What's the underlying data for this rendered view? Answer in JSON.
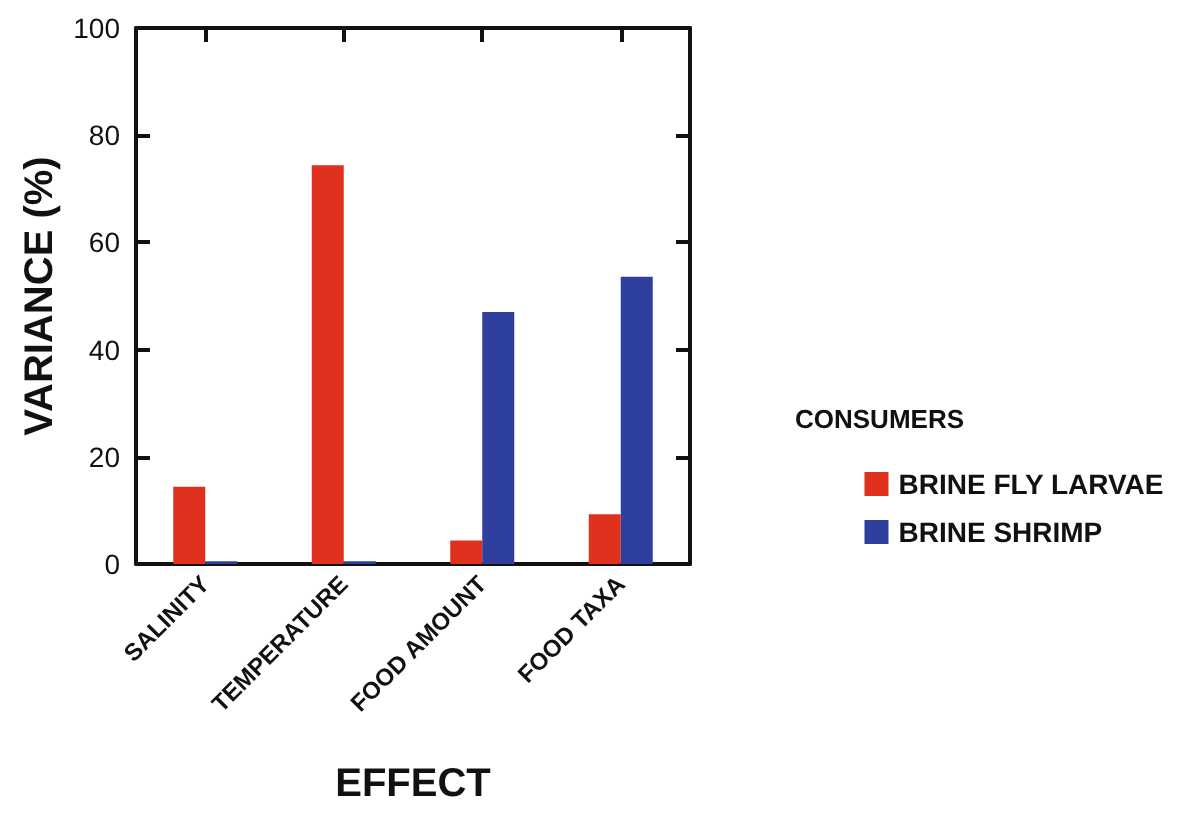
{
  "chart_data": {
    "type": "bar",
    "xlabel": "EFFECT",
    "ylabel": "VARIANCE (%)",
    "legend_title": "CONSUMERS",
    "categories": [
      "SALINITY",
      "TEMPERATURE",
      "FOOD AMOUNT",
      "FOOD TAXA"
    ],
    "series": [
      {
        "name": "BRINE FLY LARVAE",
        "color": "#e0301e",
        "values": [
          14.4,
          74.4,
          4.4,
          9.3
        ]
      },
      {
        "name": "BRINE SHRIMP",
        "color": "#2e3f9e",
        "values": [
          0.5,
          0.5,
          47,
          53.6
        ]
      }
    ],
    "ylim": [
      0,
      100
    ],
    "yticks": [
      0,
      20,
      40,
      60,
      80,
      100
    ],
    "grid": false,
    "legend": "right"
  }
}
